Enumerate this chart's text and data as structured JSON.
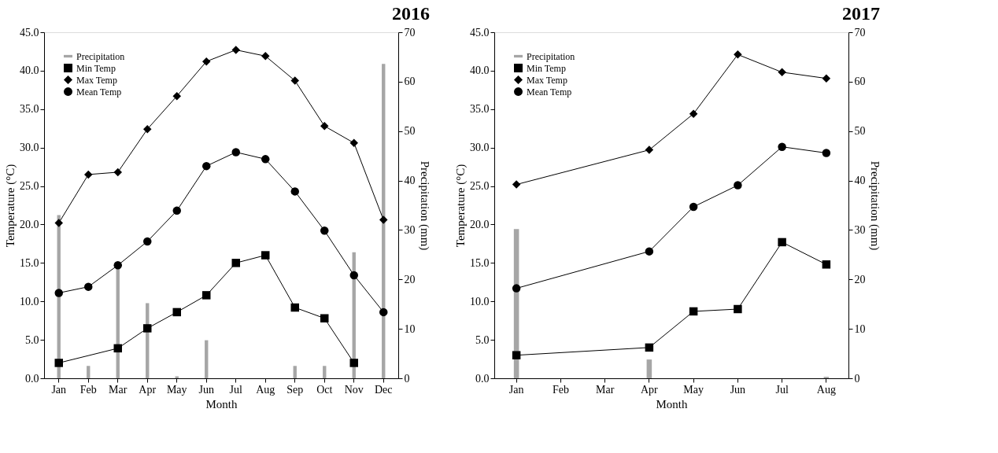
{
  "chart_data": [
    {
      "type": "bar",
      "title": "2016",
      "xlabel": "Month",
      "ylabel": "Temperature (°C)",
      "y2label": "Precipitation (mm)",
      "categories": [
        "Jan",
        "Feb",
        "Mar",
        "Apr",
        "May",
        "Jun",
        "Jul",
        "Aug",
        "Sep",
        "Oct",
        "Nov",
        "Dec"
      ],
      "series": [
        {
          "name": "Precipitation",
          "axis": "y2",
          "color": "#a6a6a6",
          "values": [
            33.0,
            2.5,
            22.5,
            15.2,
            0.4,
            7.7,
            0,
            0,
            2.5,
            2.5,
            25.5,
            63.6
          ]
        },
        {
          "name": "Min Temp",
          "type": "line",
          "marker": "square",
          "color": "#000000",
          "values": [
            2.0,
            null,
            3.9,
            6.5,
            8.6,
            10.8,
            15.0,
            16.0,
            9.2,
            7.8,
            2.0,
            null
          ]
        },
        {
          "name": "Max Temp",
          "type": "line",
          "marker": "diamond",
          "color": "#000000",
          "values": [
            20.2,
            26.5,
            26.8,
            32.4,
            36.7,
            41.2,
            42.7,
            41.9,
            38.7,
            32.8,
            30.6,
            20.6
          ]
        },
        {
          "name": "Mean Temp",
          "type": "line",
          "marker": "circle",
          "color": "#000000",
          "values": [
            11.1,
            11.9,
            14.7,
            17.8,
            21.8,
            27.6,
            29.4,
            28.5,
            24.3,
            19.2,
            13.4,
            8.6
          ]
        }
      ],
      "ylim": [
        0,
        45
      ],
      "yticks": [
        {
          "value": 0,
          "label": "0.0"
        },
        {
          "value": 5,
          "label": "5.0"
        },
        {
          "value": 10,
          "label": "10.0"
        },
        {
          "value": 15,
          "label": "15.0"
        },
        {
          "value": 20,
          "label": "20.0"
        },
        {
          "value": 25,
          "label": "25.0"
        },
        {
          "value": 30,
          "label": "30.0"
        },
        {
          "value": 35,
          "label": "35.0"
        },
        {
          "value": 40,
          "label": "40.0"
        },
        {
          "value": 45,
          "label": "45.0"
        }
      ],
      "y2lim": [
        0,
        70
      ],
      "y2ticks": [
        0,
        10,
        20,
        30,
        40,
        50,
        60,
        70
      ],
      "legend": "top left",
      "grid": false,
      "line_style": "solid"
    },
    {
      "type": "bar",
      "title": "2017",
      "xlabel": "Month",
      "ylabel": "Temperature (°C)",
      "y2label": "Precipitation (mm)",
      "categories": [
        "Jan",
        "Feb",
        "Mar",
        "Apr",
        "May",
        "Jun",
        "Jul",
        "Aug"
      ],
      "series": [
        {
          "name": "Precipitation",
          "axis": "y2",
          "color": "#a6a6a6",
          "values": [
            30.2,
            null,
            null,
            3.8,
            0,
            0,
            0,
            0.3
          ]
        },
        {
          "name": "Min Temp",
          "type": "line",
          "marker": "square",
          "color": "#000000",
          "values": [
            3.0,
            null,
            null,
            4.0,
            8.7,
            9.0,
            17.7,
            14.8
          ]
        },
        {
          "name": "Max Temp",
          "type": "line",
          "marker": "diamond",
          "color": "#000000",
          "values": [
            25.2,
            null,
            null,
            29.7,
            34.4,
            42.1,
            39.8,
            39.0
          ]
        },
        {
          "name": "Mean Temp",
          "type": "line",
          "marker": "circle",
          "color": "#000000",
          "values": [
            11.7,
            null,
            null,
            16.5,
            22.3,
            25.1,
            30.1,
            29.3
          ]
        }
      ],
      "ylim": [
        0,
        45
      ],
      "yticks": [
        {
          "value": 0,
          "label": "0.0"
        },
        {
          "value": 5,
          "label": "5.0"
        },
        {
          "value": 10,
          "label": "10.0"
        },
        {
          "value": 15,
          "label": "15.0"
        },
        {
          "value": 20,
          "label": "20.0"
        },
        {
          "value": 25,
          "label": "25.0"
        },
        {
          "value": 30,
          "label": "30.0"
        },
        {
          "value": 35,
          "label": "35.0"
        },
        {
          "value": 40,
          "label": "40.0"
        },
        {
          "value": 45,
          "label": "45.0"
        }
      ],
      "y2lim": [
        0,
        70
      ],
      "y2ticks": [
        0,
        10,
        20,
        30,
        40,
        50,
        60,
        70
      ],
      "legend": "top left",
      "grid": false,
      "line_style": "solid"
    }
  ]
}
